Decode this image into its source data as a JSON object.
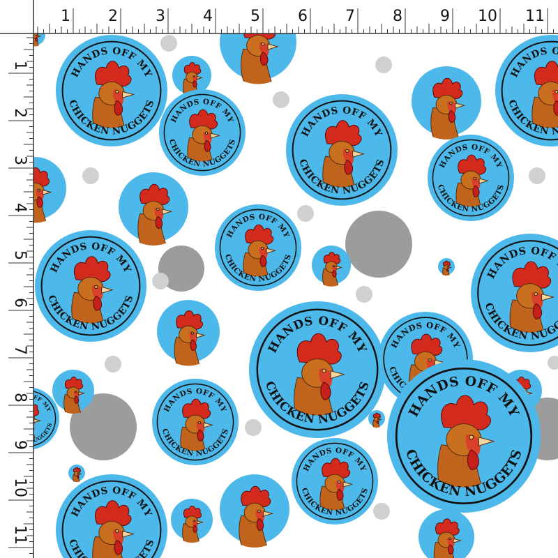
{
  "ruler": {
    "top": [
      "1",
      "2",
      "3",
      "4",
      "5",
      "6",
      "7",
      "8",
      "9",
      "10",
      "11"
    ],
    "left": [
      "1",
      "2",
      "3",
      "4",
      "5",
      "6",
      "7",
      "8",
      "9",
      "10",
      "11"
    ]
  },
  "badge": {
    "top_text": "HANDS OFF MY",
    "bottom_text": "CHICKEN NUGGETS"
  }
}
